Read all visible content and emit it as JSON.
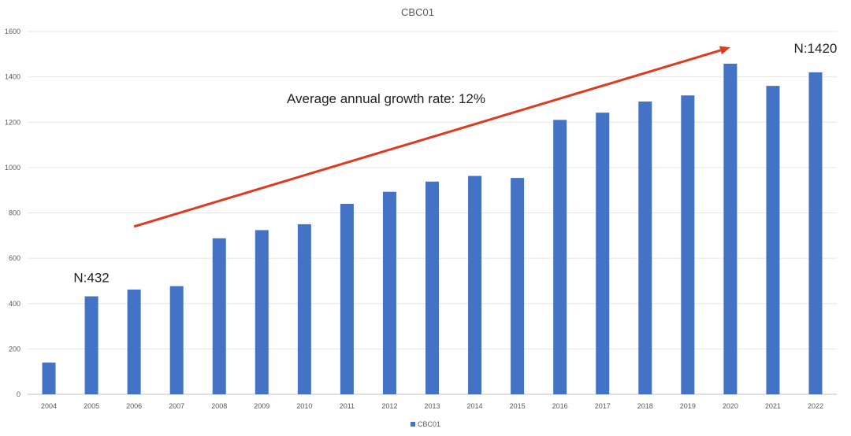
{
  "chart_data": {
    "type": "bar",
    "title": "CBC01",
    "categories": [
      "2004",
      "2005",
      "2006",
      "2007",
      "2008",
      "2009",
      "2010",
      "2011",
      "2012",
      "2013",
      "2014",
      "2015",
      "2016",
      "2017",
      "2018",
      "2019",
      "2020",
      "2021",
      "2022"
    ],
    "series": [
      {
        "name": "CBC01",
        "color": "#4472C4",
        "values": [
          140,
          432,
          462,
          477,
          688,
          724,
          750,
          840,
          893,
          938,
          963,
          954,
          1210,
          1242,
          1291,
          1318,
          1458,
          1360,
          1420
        ]
      }
    ],
    "ylim": [
      0,
      1600
    ],
    "yticks": [
      0,
      200,
      400,
      600,
      800,
      1000,
      1200,
      1400,
      1600
    ],
    "grid": true,
    "legend_position": "bottom",
    "annotations": [
      {
        "text": "N:432",
        "category": "2005"
      },
      {
        "text": "N:1420",
        "category": "2022"
      },
      {
        "text": "Average annual growth rate: 12%"
      }
    ],
    "trend_arrow": {
      "color": "#E0391E",
      "from": {
        "category": "2006",
        "value": 740
      },
      "to": {
        "category": "2020",
        "value": 1530
      }
    }
  }
}
